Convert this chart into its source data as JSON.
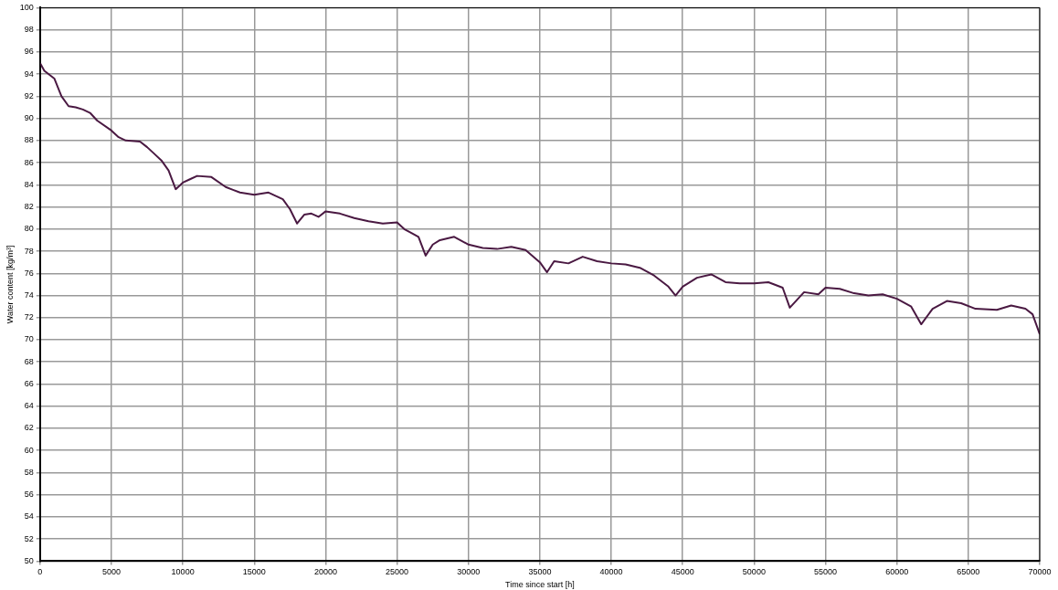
{
  "chart_data": {
    "type": "line",
    "xlabel": "Time since start [h]",
    "ylabel": "Water content [kg/m³]",
    "x": [
      0,
      300,
      1000,
      1500,
      2000,
      2500,
      3000,
      3500,
      4000,
      5000,
      5500,
      6000,
      7000,
      7500,
      8000,
      8500,
      9000,
      9500,
      10000,
      10500,
      11000,
      12000,
      13000,
      14000,
      15000,
      16000,
      17000,
      17500,
      18000,
      18500,
      19000,
      19500,
      20000,
      21000,
      22000,
      23000,
      24000,
      25000,
      25500,
      26500,
      27000,
      27500,
      28000,
      29000,
      30000,
      31000,
      32000,
      33000,
      34000,
      35000,
      35500,
      36000,
      37000,
      38000,
      39000,
      40000,
      41000,
      42000,
      43000,
      44000,
      44500,
      45000,
      46000,
      47000,
      48000,
      49000,
      50000,
      51000,
      52000,
      52500,
      53000,
      53500,
      54500,
      55000,
      56000,
      57000,
      58000,
      59000,
      60000,
      61000,
      61700,
      62500,
      63500,
      64500,
      65500,
      67000,
      68000,
      69000,
      69500,
      70000
    ],
    "series": [
      {
        "color": "#4a1942",
        "values": [
          95.0,
          94.3,
          93.6,
          92.0,
          91.1,
          91.0,
          90.8,
          90.5,
          89.8,
          88.9,
          88.3,
          88.0,
          87.9,
          87.4,
          86.8,
          86.2,
          85.3,
          83.6,
          84.2,
          84.5,
          84.8,
          84.7,
          83.8,
          83.3,
          83.1,
          83.3,
          82.7,
          81.8,
          80.5,
          81.3,
          81.4,
          81.1,
          81.6,
          81.4,
          81.0,
          80.7,
          80.5,
          80.6,
          80.0,
          79.3,
          77.6,
          78.6,
          79.0,
          79.3,
          78.6,
          78.3,
          78.2,
          78.4,
          78.1,
          77.0,
          76.1,
          77.1,
          76.9,
          77.5,
          77.1,
          76.9,
          76.8,
          76.5,
          75.8,
          74.8,
          74.0,
          74.8,
          75.6,
          75.9,
          75.2,
          75.1,
          75.1,
          75.2,
          74.7,
          72.9,
          73.6,
          74.3,
          74.1,
          74.7,
          74.6,
          74.2,
          74.0,
          74.1,
          73.7,
          73.0,
          71.4,
          72.8,
          73.5,
          73.3,
          72.8,
          72.7,
          73.1,
          72.8,
          72.3,
          70.5
        ]
      }
    ],
    "xlim": [
      0,
      70000
    ],
    "xticks": [
      0,
      5000,
      10000,
      15000,
      20000,
      25000,
      30000,
      35000,
      40000,
      45000,
      50000,
      55000,
      60000,
      65000,
      70000
    ],
    "ylim": [
      50,
      100
    ],
    "yticks": [
      50,
      52,
      54,
      56,
      58,
      60,
      62,
      64,
      66,
      68,
      70,
      72,
      74,
      76,
      78,
      80,
      82,
      84,
      86,
      88,
      90,
      92,
      94,
      96,
      98,
      100
    ],
    "grid": true,
    "legend": false,
    "marker": "none",
    "line_style": "solid"
  }
}
